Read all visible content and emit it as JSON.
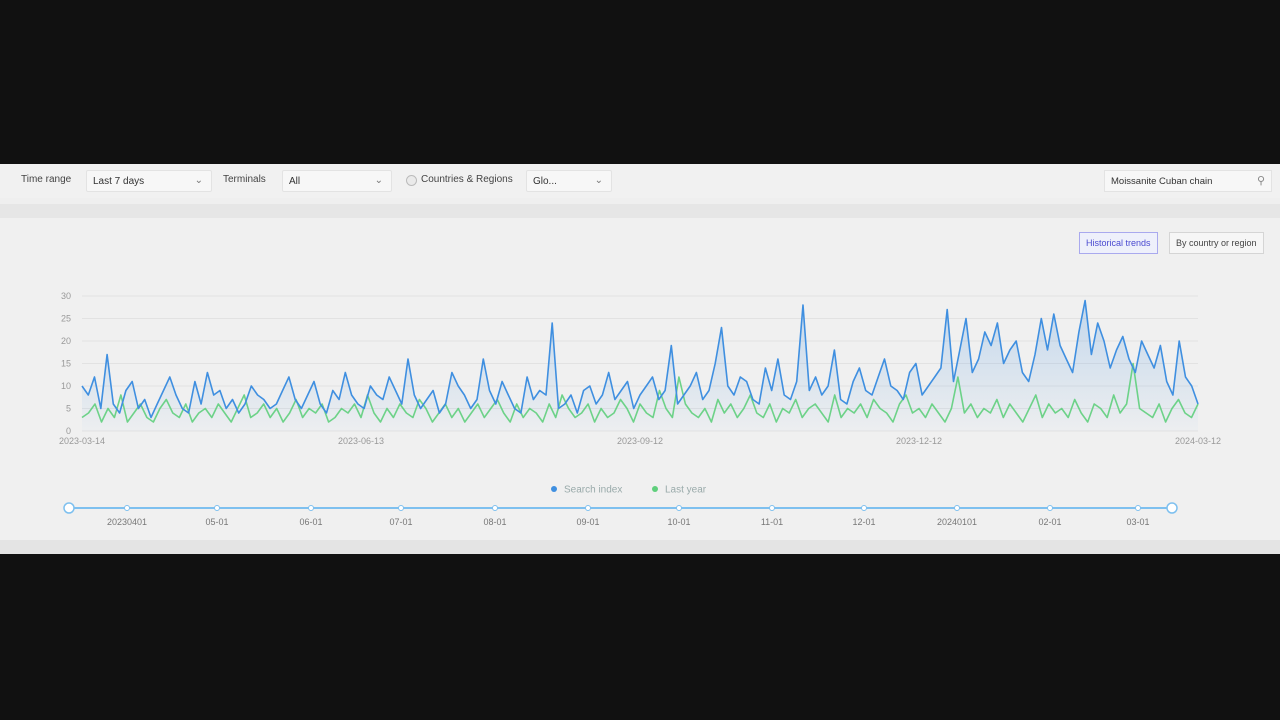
{
  "filters": {
    "time_range_label": "Time range",
    "time_range_value": "Last 7 days",
    "terminals_label": "Terminals",
    "terminals_value": "All",
    "countries_label": "Countries & Regions",
    "countries_value": "Glo...",
    "search_value": "Moissanite Cuban chain"
  },
  "view_toggle": {
    "historical": "Historical trends",
    "by_country": "By country or region",
    "active": "historical"
  },
  "colors": {
    "search_index": "#3f8fe0",
    "last_year": "#5fcf7c",
    "accent": "#4a4ad0"
  },
  "icons": {
    "search": "search-icon",
    "chevron": "chevron-down-icon"
  },
  "chart_data": {
    "type": "line",
    "x_start": "2023-03-14",
    "x_end": "2024-03-12",
    "x_ticks": [
      "2023-03-14",
      "2023-06-13",
      "2023-09-12",
      "2023-12-12",
      "2024-03-12"
    ],
    "y_ticks": [
      0,
      5,
      10,
      15,
      20,
      25,
      30
    ],
    "ylim": [
      0,
      30
    ],
    "grid": true,
    "legend_position": "bottom-center",
    "series": [
      {
        "name": "Search index",
        "color": "#3f8fe0",
        "values": [
          10,
          8,
          12,
          5,
          17,
          6,
          4,
          9,
          11,
          5,
          7,
          3,
          6,
          9,
          12,
          8,
          5,
          4,
          11,
          6,
          13,
          8,
          9,
          5,
          7,
          4,
          6,
          10,
          8,
          7,
          5,
          6,
          9,
          12,
          7,
          5,
          8,
          11,
          6,
          4,
          9,
          7,
          13,
          8,
          6,
          5,
          10,
          8,
          7,
          12,
          9,
          6,
          16,
          8,
          5,
          7,
          9,
          4,
          6,
          13,
          10,
          8,
          5,
          7,
          16,
          9,
          6,
          11,
          8,
          5,
          4,
          12,
          7,
          9,
          8,
          24,
          5,
          6,
          8,
          4,
          9,
          10,
          6,
          8,
          13,
          7,
          9,
          11,
          5,
          8,
          10,
          12,
          7,
          9,
          19,
          6,
          8,
          10,
          13,
          7,
          9,
          15,
          23,
          10,
          8,
          12,
          11,
          7,
          6,
          14,
          9,
          16,
          8,
          7,
          11,
          28,
          9,
          12,
          8,
          10,
          18,
          7,
          6,
          11,
          14,
          9,
          8,
          12,
          16,
          10,
          9,
          7,
          13,
          15,
          8,
          10,
          12,
          14,
          27,
          11,
          18,
          25,
          13,
          16,
          22,
          19,
          24,
          15,
          18,
          20,
          13,
          11,
          17,
          25,
          18,
          26,
          19,
          16,
          13,
          22,
          29,
          17,
          24,
          20,
          14,
          18,
          21,
          16,
          13,
          20,
          17,
          14,
          19,
          11,
          8,
          20,
          12,
          10,
          6
        ]
      },
      {
        "name": "Last year",
        "color": "#5fcf7c",
        "values": [
          3,
          4,
          6,
          2,
          5,
          3,
          8,
          2,
          4,
          6,
          3,
          2,
          5,
          7,
          4,
          3,
          6,
          2,
          4,
          5,
          3,
          6,
          4,
          2,
          5,
          8,
          3,
          4,
          6,
          3,
          5,
          2,
          4,
          7,
          3,
          5,
          4,
          6,
          2,
          3,
          5,
          4,
          6,
          3,
          8,
          4,
          2,
          5,
          3,
          6,
          4,
          3,
          7,
          5,
          2,
          4,
          6,
          3,
          5,
          2,
          4,
          6,
          3,
          5,
          7,
          4,
          2,
          6,
          3,
          5,
          4,
          2,
          6,
          3,
          8,
          5,
          3,
          4,
          6,
          2,
          5,
          3,
          4,
          7,
          5,
          2,
          6,
          4,
          3,
          9,
          5,
          3,
          12,
          6,
          4,
          3,
          5,
          2,
          7,
          4,
          6,
          3,
          5,
          8,
          4,
          3,
          6,
          2,
          5,
          4,
          7,
          3,
          5,
          6,
          4,
          2,
          8,
          3,
          5,
          4,
          6,
          3,
          7,
          5,
          4,
          2,
          6,
          8,
          4,
          5,
          3,
          6,
          4,
          2,
          5,
          12,
          4,
          6,
          3,
          5,
          4,
          7,
          3,
          6,
          4,
          2,
          5,
          8,
          3,
          6,
          4,
          5,
          3,
          7,
          4,
          2,
          6,
          5,
          3,
          8,
          4,
          6,
          15,
          5,
          4,
          3,
          6,
          2,
          5,
          7,
          4,
          3,
          6
        ]
      }
    ]
  },
  "timeline": {
    "labels": [
      "20230401",
      "05-01",
      "06-01",
      "07-01",
      "08-01",
      "09-01",
      "10-01",
      "11-01",
      "12-01",
      "20240101",
      "02-01",
      "03-01"
    ]
  }
}
